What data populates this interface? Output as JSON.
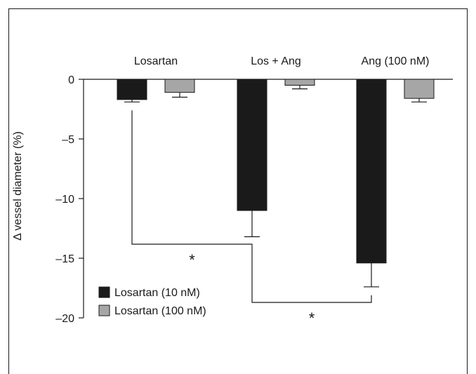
{
  "chart_data": {
    "type": "bar",
    "categories": [
      "Losartan",
      "Los + Ang",
      "Ang (100 nM)"
    ],
    "ylabel": "Δ vessel diameter (%)",
    "ylim": [
      -20,
      0
    ],
    "yticks": [
      0,
      -5,
      -10,
      -15,
      -20
    ],
    "ytick_labels": [
      "0",
      "–5",
      "–10",
      "–15",
      "–20"
    ],
    "series": [
      {
        "name": "Losartan (10 nM)",
        "color": "#1a1a1a",
        "values": [
          -1.7,
          -11.0,
          -15.4
        ],
        "errors": [
          0.2,
          2.2,
          2.0
        ]
      },
      {
        "name": "Losartan (100 nM)",
        "color": "#a6a6a6",
        "values": [
          -1.1,
          -0.5,
          -1.6
        ],
        "errors": [
          0.4,
          0.3,
          0.3
        ]
      }
    ],
    "significance": [
      {
        "between": [
          "Losartan/Losartan (10 nM)",
          "Los + Ang/Losartan (10 nM)"
        ],
        "label": "*"
      },
      {
        "between": [
          "Los + Ang/Losartan (10 nM)",
          "Ang (100 nM)/Losartan (10 nM)"
        ],
        "label": "*"
      }
    ],
    "legend_position": "bottom-left",
    "grid": false
  }
}
